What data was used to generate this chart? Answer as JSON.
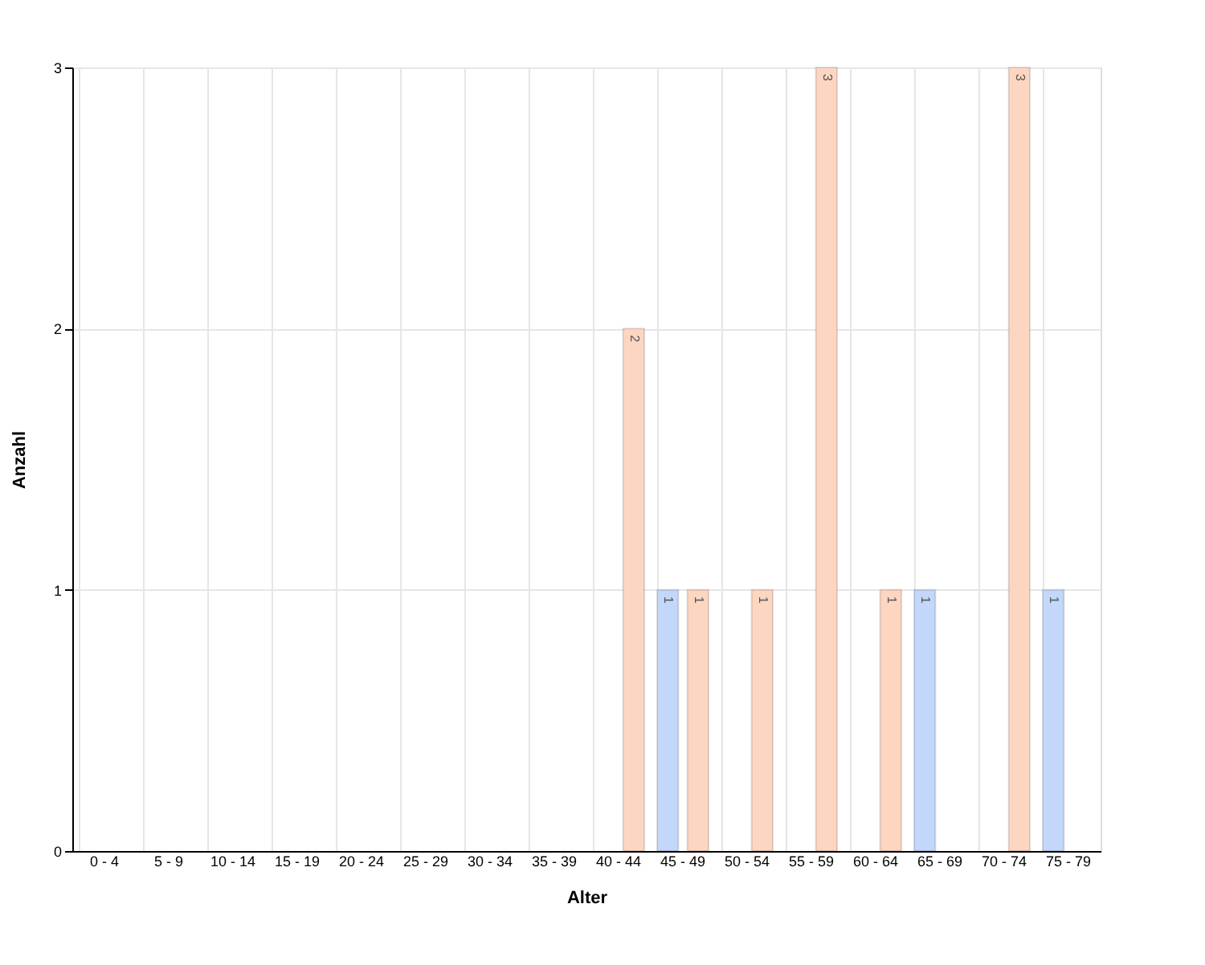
{
  "chart_data": {
    "type": "bar",
    "xlabel": "Alter",
    "ylabel": "Anzahl",
    "categories": [
      "0 - 4",
      "5 - 9",
      "10 - 14",
      "15 - 19",
      "20 - 24",
      "25 - 29",
      "30 - 34",
      "35 - 39",
      "40 - 44",
      "45 - 49",
      "50 - 54",
      "55 - 59",
      "60 - 64",
      "65 - 69",
      "70 - 74",
      "75 - 79"
    ],
    "series": [
      {
        "color": "#c3d7fa",
        "values": [
          null,
          null,
          null,
          null,
          null,
          null,
          null,
          null,
          null,
          1,
          null,
          null,
          null,
          1,
          null,
          1
        ]
      },
      {
        "color": "#fdd6c1",
        "values": [
          null,
          null,
          null,
          null,
          null,
          null,
          null,
          null,
          2,
          1,
          1,
          3,
          1,
          null,
          3,
          null
        ]
      }
    ],
    "data_labels": true,
    "ylim": [
      0,
      3
    ],
    "yticks": [
      0,
      1,
      2,
      3
    ],
    "grid": true,
    "legend": false
  }
}
